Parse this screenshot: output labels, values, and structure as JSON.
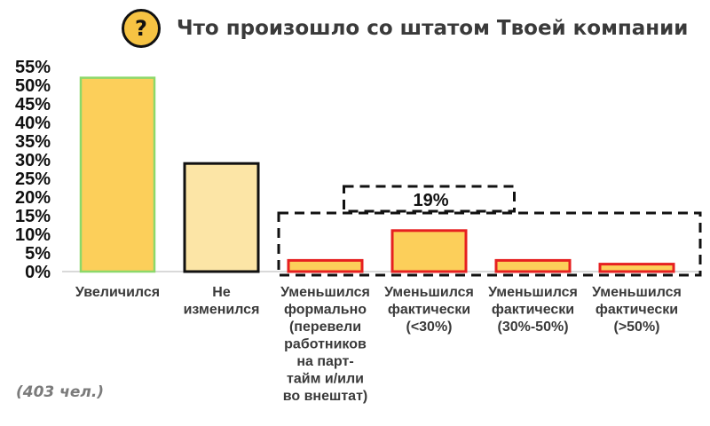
{
  "header": {
    "icon": "question-mark-icon",
    "icon_glyph": "?",
    "title": "Что произошло со штатом Твоей компании"
  },
  "note": "(403 чел.)",
  "colors": {
    "bar_fill": "#FCCF5A",
    "bar_fill_light": "#FCE5A6",
    "badge": "#F6C343",
    "outline_green": "#8CD86A",
    "outline_black": "#111111",
    "outline_red": "#E62020"
  },
  "chart_data": {
    "type": "bar",
    "categories": [
      [
        "Увеличился"
      ],
      [
        "Не",
        "изменился"
      ],
      [
        "Уменьшился",
        "формально",
        "(перевели",
        "работников",
        "на парт-",
        "тайм и/или",
        "во внештат)"
      ],
      [
        "Уменьшился",
        "фактически",
        "(<30%)"
      ],
      [
        "Уменьшился",
        "фактически",
        "(30%-50%)"
      ],
      [
        "Уменьшился",
        "фактически",
        "(>50%)"
      ]
    ],
    "values": [
      52,
      29,
      3,
      11,
      3,
      2
    ],
    "ylim": [
      0,
      55
    ],
    "yticks": [
      0,
      5,
      10,
      15,
      20,
      25,
      30,
      35,
      40,
      45,
      50,
      55
    ],
    "ytick_labels": [
      "0%",
      "5%",
      "10%",
      "15%",
      "20%",
      "25%",
      "30%",
      "35%",
      "40%",
      "45%",
      "50%",
      "55%"
    ],
    "bar_outlines": [
      "green",
      "black",
      "red",
      "red",
      "red",
      "red"
    ],
    "bar_fills": [
      "bar_fill",
      "bar_fill_light",
      "bar_fill",
      "bar_fill",
      "bar_fill",
      "bar_fill"
    ],
    "annotation": {
      "label": "19%",
      "groups_bars": [
        2,
        3,
        4,
        5
      ],
      "style": "dashed box"
    },
    "grid": false,
    "legend": "none"
  }
}
